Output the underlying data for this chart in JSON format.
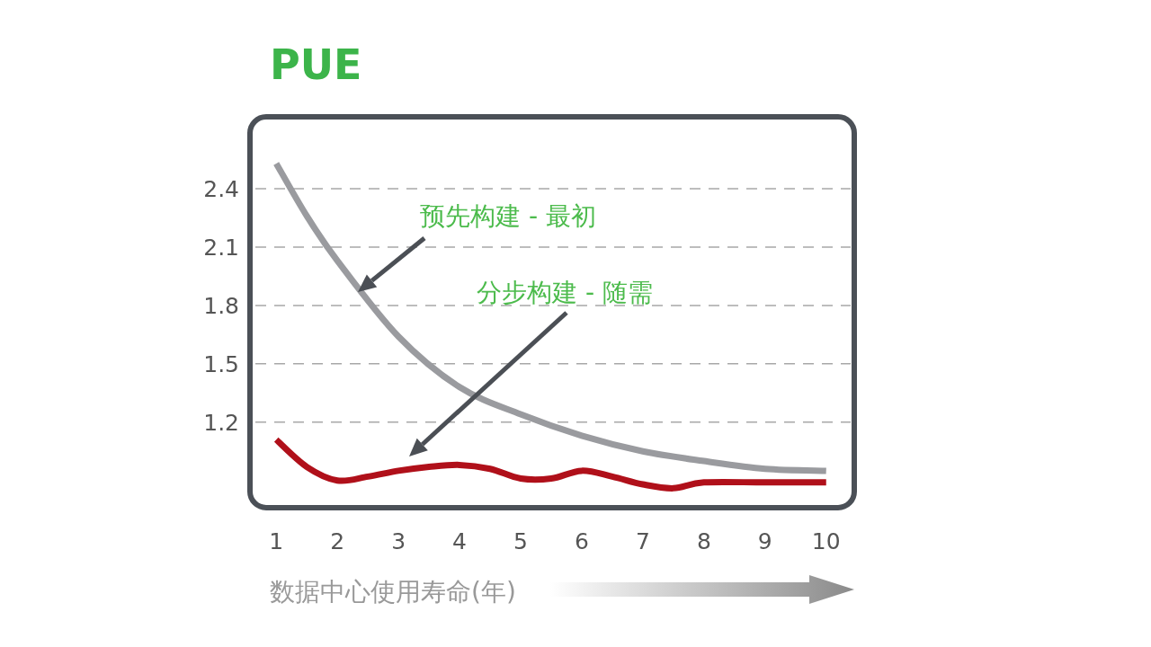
{
  "chart_data": {
    "type": "line",
    "title": "PUE",
    "xlabel": "数据中心使用寿命(年)",
    "xlim": [
      0.57,
      10.46
    ],
    "xticks": [
      1,
      2,
      3,
      4,
      5,
      6,
      7,
      8,
      9,
      10
    ],
    "ylim": [
      0.76,
      2.77
    ],
    "yticks": [
      1.2,
      1.5,
      1.8,
      2.1,
      2.4
    ],
    "grid": "y",
    "marker": "none",
    "line_style": "solid",
    "series": [
      {
        "color": "#9a9b9f",
        "x": [
          1,
          1.5,
          2,
          3,
          4,
          5,
          6,
          7,
          8,
          9,
          10
        ],
        "values": [
          2.53,
          2.26,
          2.03,
          1.64,
          1.38,
          1.24,
          1.13,
          1.05,
          1.0,
          0.96,
          0.95
        ]
      },
      {
        "color": "#b0101a",
        "x": [
          1,
          1.5,
          2,
          2.5,
          3,
          3.5,
          4,
          4.5,
          5,
          5.5,
          6,
          6.5,
          7,
          7.5,
          8,
          9,
          10
        ],
        "values": [
          1.11,
          0.97,
          0.9,
          0.92,
          0.95,
          0.97,
          0.98,
          0.96,
          0.91,
          0.91,
          0.95,
          0.92,
          0.88,
          0.86,
          0.89,
          0.89,
          0.89
        ]
      }
    ],
    "annotations": [
      "预先构建 - 最初",
      "分步构建 - 随需"
    ]
  }
}
